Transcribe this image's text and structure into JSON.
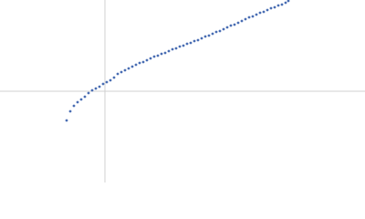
{
  "chart_data": {
    "type": "scatter",
    "color": "#4a6eb3",
    "grid": true,
    "tick_labels": false,
    "xlim": [
      -115,
      285
    ],
    "ylim": [
      -100,
      100
    ],
    "xticks": [
      0
    ],
    "yticks": [
      0
    ],
    "x": [
      -42,
      -38,
      -34,
      -30,
      -26,
      -22,
      -18,
      -14,
      -10,
      -6,
      -2,
      2,
      6,
      10,
      14,
      18,
      22,
      26,
      30,
      34,
      38,
      42,
      46,
      50,
      54,
      58,
      62,
      66,
      70,
      74,
      78,
      82,
      86,
      90,
      94,
      98,
      102,
      106,
      110,
      114,
      118,
      122,
      126,
      130,
      134,
      138,
      142,
      146,
      150,
      154,
      158,
      162,
      166,
      170,
      174,
      178,
      182,
      186,
      190,
      194,
      198,
      201
    ],
    "values": [
      -32,
      -22,
      -16,
      -12,
      -9,
      -6,
      -2,
      1,
      3,
      5,
      8,
      10,
      12,
      15,
      19,
      21,
      23,
      25,
      27,
      29,
      31,
      32,
      34,
      36,
      38,
      39,
      41,
      42,
      44,
      46,
      47,
      49,
      50,
      52,
      53,
      55,
      56,
      58,
      60,
      61,
      63,
      65,
      66,
      68,
      70,
      72,
      73,
      75,
      77,
      79,
      81,
      82,
      84,
      86,
      87,
      89,
      91,
      92,
      94,
      95,
      97,
      99
    ]
  }
}
